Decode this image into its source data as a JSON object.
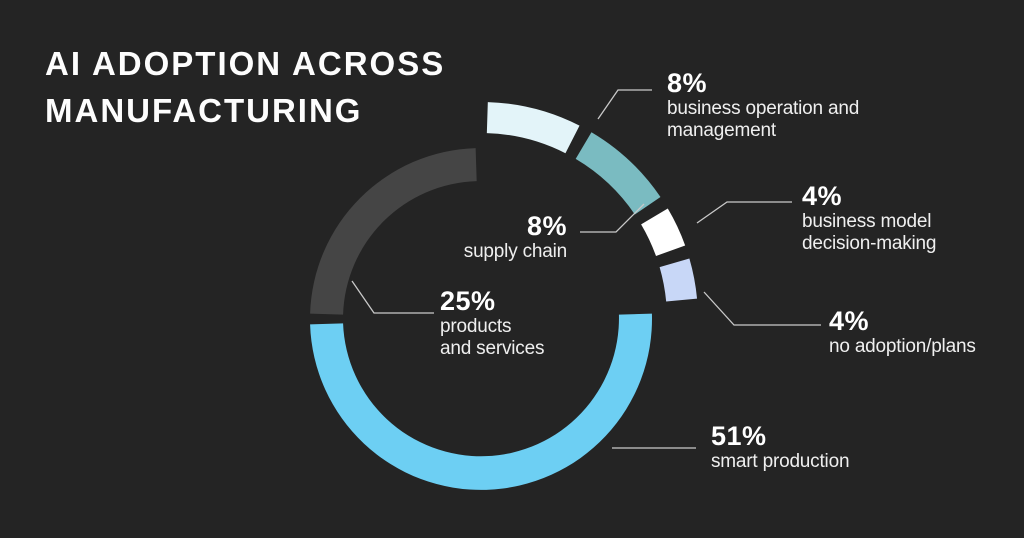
{
  "title": {
    "line1": "AI ADOPTION ACROSS",
    "line2": "MANUFACTURING"
  },
  "colors": {
    "background": "#242424",
    "leader_line": "#c9c9c9",
    "title_text": "#fdfdfd",
    "number_text": "#ffffff",
    "label_text": "#efefef"
  },
  "chart_data": {
    "type": "pie",
    "subtype": "donut",
    "title": "AI ADOPTION ACROSS MANUFACTURING",
    "unit": "percent",
    "start_position": "12 o'clock, clockwise",
    "legend_position": "callout labels with leader lines",
    "segments": [
      {
        "id": "business-operation",
        "label": "business operation and management",
        "value": 8,
        "display": "8%",
        "color": "#e3f4f9",
        "ring": "outer"
      },
      {
        "id": "supply-chain",
        "label": "supply chain",
        "value": 8,
        "display": "8%",
        "color": "#7abbc1",
        "ring": "outer"
      },
      {
        "id": "business-model",
        "label": "business model decision-making",
        "value": 4,
        "display": "4%",
        "color": "#ffffff",
        "ring": "outer"
      },
      {
        "id": "no-adoption",
        "label": "no adoption/plans",
        "value": 4,
        "display": "4%",
        "color": "#c8d7f7",
        "ring": "outer"
      },
      {
        "id": "smart-production",
        "label": "smart production",
        "value": 51,
        "display": "51%",
        "color": "#6dcff3",
        "ring": "main"
      },
      {
        "id": "products-services",
        "label": "products and services",
        "value": 25,
        "display": "25%",
        "color": "#454545",
        "ring": "main"
      }
    ]
  },
  "labels": {
    "business_operation": {
      "pct": "8%",
      "line1": "business operation and",
      "line2": "management"
    },
    "supply_chain": {
      "pct": "8%",
      "line1": "supply chain"
    },
    "business_model": {
      "pct": "4%",
      "line1": "business model",
      "line2": "decision-making"
    },
    "no_adoption": {
      "pct": "4%",
      "line1": "no adoption/plans"
    },
    "smart_production": {
      "pct": "51%",
      "line1": "smart production"
    },
    "products_services": {
      "pct": "25%",
      "line1": "products",
      "line2": "and services"
    }
  }
}
